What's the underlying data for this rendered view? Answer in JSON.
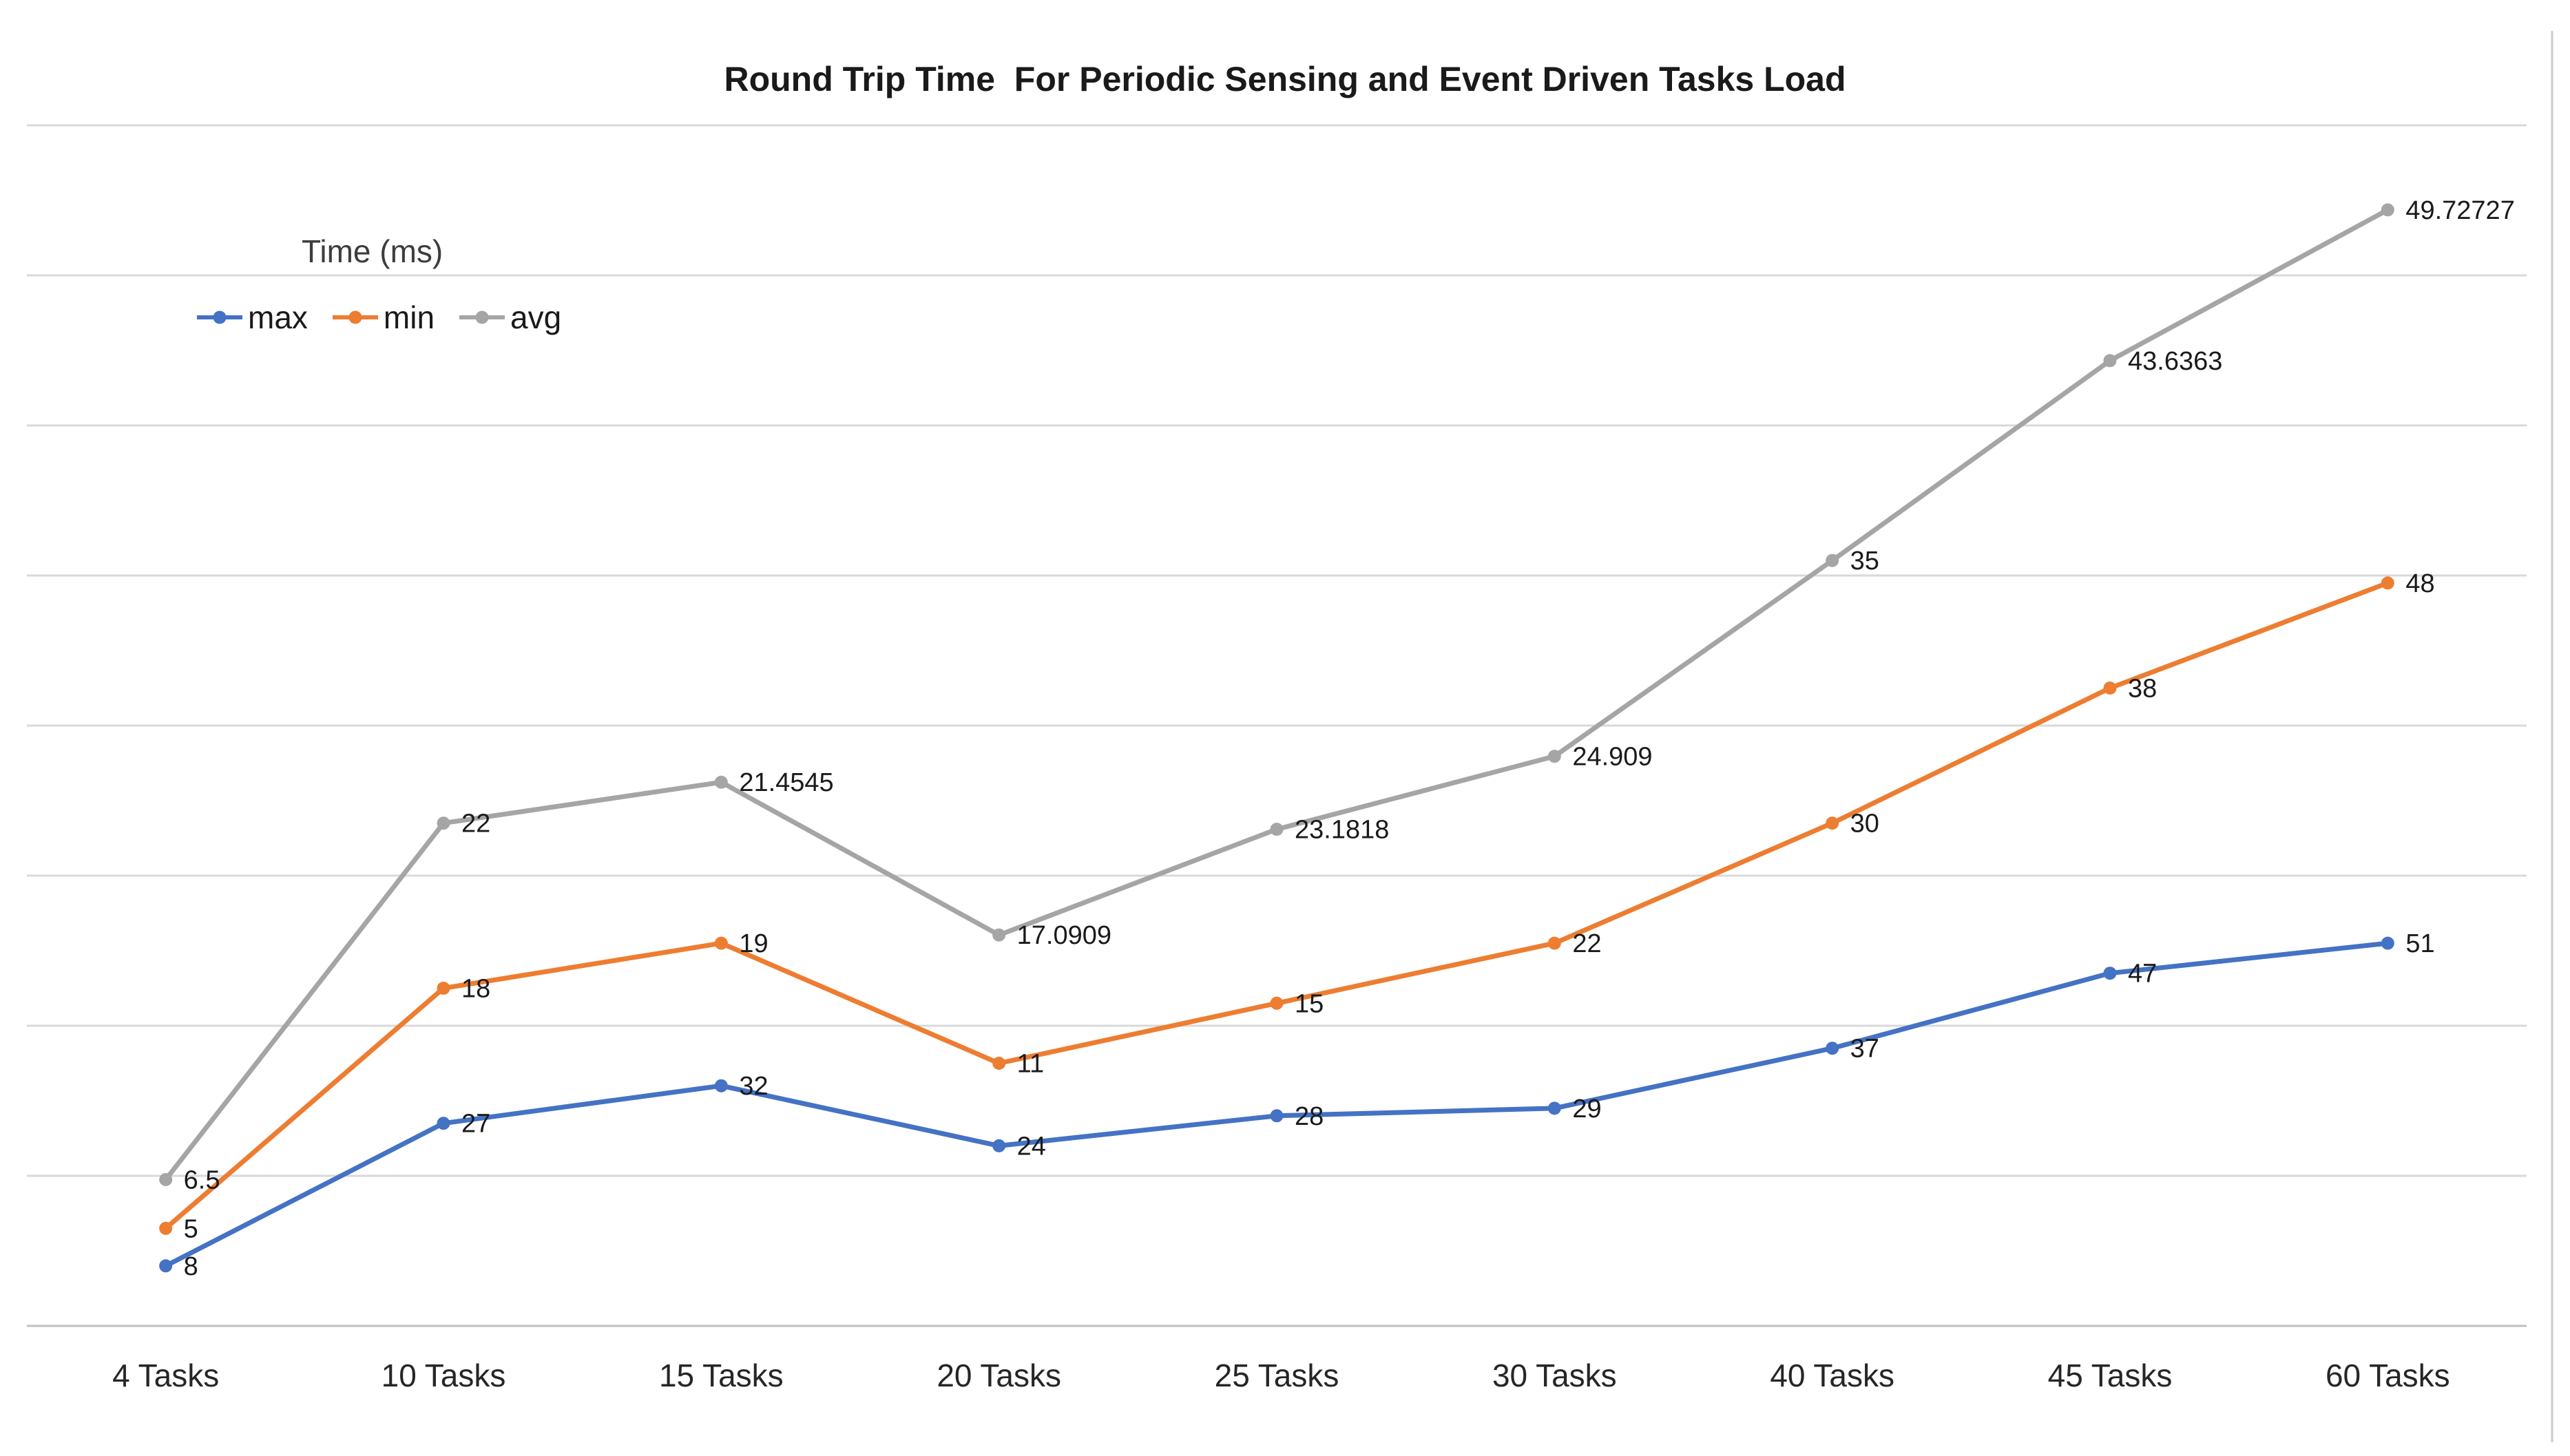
{
  "chart_data": {
    "type": "line",
    "stacked": true,
    "title": "Round Trip Time  For Periodic Sensing and Event Driven Tasks Load",
    "axis_title": "Time (ms)",
    "categories": [
      "4 Tasks",
      "10 Tasks",
      "15 Tasks",
      "20 Tasks",
      "25 Tasks",
      "30 Tasks",
      "40 Tasks",
      "45 Tasks",
      "60 Tasks"
    ],
    "series": [
      {
        "name": "max",
        "color": "#4472C4",
        "values": [
          8,
          27,
          32,
          24,
          28,
          29,
          37,
          47,
          51
        ],
        "point_labels": [
          "8",
          "27",
          "32",
          "24",
          "28",
          "29",
          "37",
          "47",
          "51"
        ]
      },
      {
        "name": "min",
        "color": "#ED7D31",
        "values": [
          5,
          18,
          19,
          11,
          15,
          22,
          30,
          38,
          48
        ],
        "point_labels": [
          "5",
          "18",
          "19",
          "11",
          "15",
          "22",
          "30",
          "38",
          "48"
        ]
      },
      {
        "name": "avg",
        "color": "#A5A5A5",
        "values": [
          6.5,
          22,
          21.4545,
          17.0909,
          23.1818,
          24.909,
          35,
          43.6363,
          49.72727
        ],
        "point_labels": [
          "6.5",
          "22",
          "21.4545",
          "17.0909",
          "23.1818",
          "24.909",
          "35",
          "43.6363",
          "49.72727"
        ]
      }
    ],
    "ylim": [
      0,
      160
    ],
    "grid_step": 20,
    "grid": "on",
    "legend_position": "top-left",
    "xlabel": "",
    "ylabel": "Time (ms)",
    "gridline_color": "#D9D9D9",
    "axis_line_color": "#BFBFBF",
    "page_border_color": "#CBCBCB",
    "data_label_color": "#1a1a1a",
    "axis_label_color": "#262626"
  }
}
